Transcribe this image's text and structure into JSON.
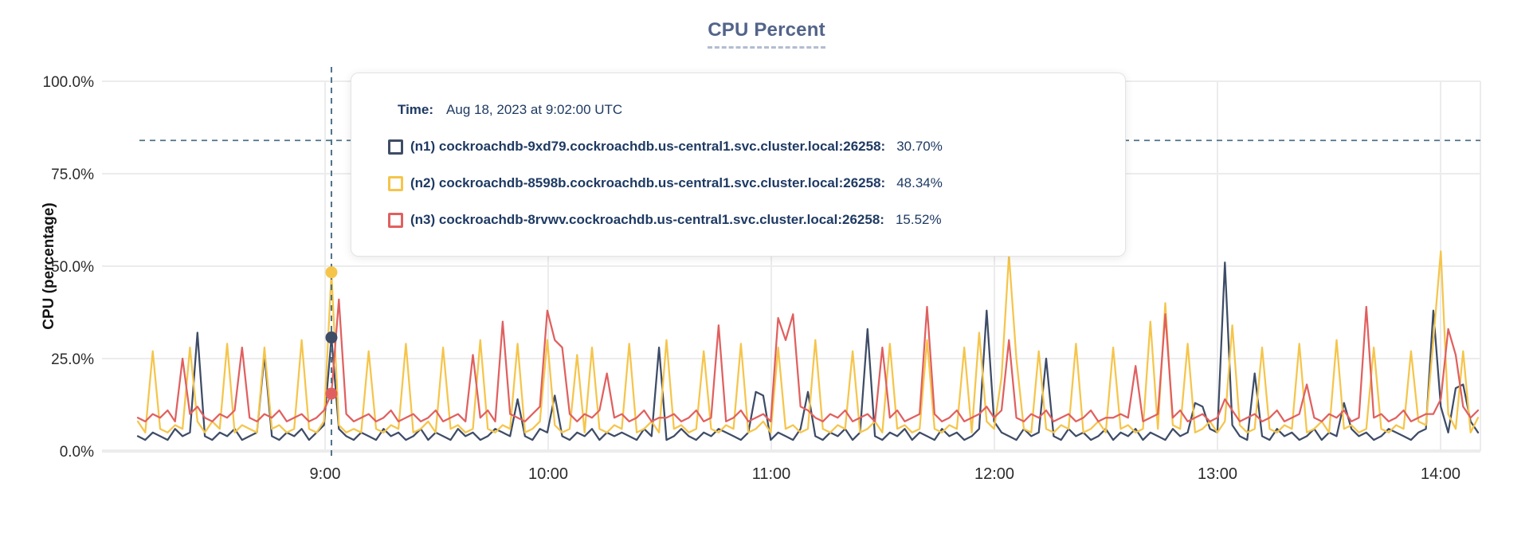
{
  "header": {
    "title": "CPU Percent"
  },
  "y_axis": {
    "label": "CPU (percentage)"
  },
  "tooltip": {
    "time_label": "Time:",
    "time_value": "Aug 18, 2023 at 9:02:00 UTC",
    "rows": [
      {
        "label": "(n1) cockroachdb-9xd79.cockroachdb.us-central1.svc.cluster.local:26258:",
        "value": "30.70%",
        "color": "#3e4c66"
      },
      {
        "label": "(n2) cockroachdb-8598b.cockroachdb.us-central1.svc.cluster.local:26258:",
        "value": "48.34%",
        "color": "#f5c54b"
      },
      {
        "label": "(n3) cockroachdb-8rvwv.cockroachdb.us-central1.svc.cluster.local:26258:",
        "value": "15.52%",
        "color": "#e0605f"
      }
    ]
  },
  "chart_data": {
    "type": "line",
    "title": "CPU Percent",
    "ylabel": "CPU (percentage)",
    "ylim": [
      0,
      100
    ],
    "grid": true,
    "x_range": [
      "8:10",
      "14:10"
    ],
    "x_step_minutes": 2,
    "x_ticks": [
      "9:00",
      "10:00",
      "11:00",
      "12:00",
      "13:00",
      "14:00"
    ],
    "y_ticks": [
      {
        "percent": 0,
        "label": "0.0%"
      },
      {
        "percent": 25,
        "label": "25.0%"
      },
      {
        "percent": 50,
        "label": "50.0%"
      },
      {
        "percent": 75,
        "label": "75.0%"
      },
      {
        "percent": 100,
        "label": "100.0%"
      }
    ],
    "threshold": {
      "percent": 84,
      "style": "dashed",
      "color": "#4e7288"
    },
    "cursor": {
      "time": "Aug 18, 2023 at 9:02:00 UTC",
      "index": 26,
      "values": [
        30.7,
        48.34,
        15.52
      ],
      "color": "#4e7288"
    },
    "series": [
      {
        "name": "(n1) cockroachdb-9xd79.cockroachdb.us-central1.svc.cluster.local:26258",
        "short": "n1",
        "color": "#3e4c66",
        "values": [
          4,
          3,
          5,
          4,
          3,
          6,
          4,
          5,
          32,
          4,
          3,
          5,
          4,
          6,
          3,
          4,
          5,
          26,
          4,
          3,
          5,
          4,
          6,
          3,
          5,
          7,
          30.7,
          6,
          4,
          3,
          5,
          4,
          3,
          6,
          4,
          5,
          3,
          4,
          6,
          3,
          5,
          4,
          3,
          6,
          4,
          5,
          3,
          4,
          6,
          5,
          4,
          14,
          4,
          3,
          6,
          5,
          15,
          4,
          3,
          5,
          4,
          6,
          3,
          5,
          4,
          5,
          4,
          3,
          6,
          4,
          28,
          3,
          4,
          6,
          4,
          3,
          5,
          4,
          6,
          5,
          4,
          3,
          5,
          16,
          15,
          3,
          5,
          4,
          3,
          6,
          16,
          4,
          3,
          5,
          4,
          6,
          3,
          5,
          33,
          4,
          3,
          5,
          4,
          6,
          3,
          5,
          4,
          3,
          6,
          4,
          5,
          3,
          4,
          6,
          38,
          8,
          5,
          4,
          3,
          6,
          4,
          5,
          25,
          4,
          3,
          6,
          4,
          5,
          3,
          4,
          6,
          3,
          5,
          4,
          6,
          3,
          5,
          4,
          3,
          6,
          4,
          5,
          13,
          12,
          6,
          5,
          51,
          7,
          4,
          3,
          21,
          4,
          3,
          6,
          4,
          5,
          3,
          4,
          6,
          3,
          5,
          4,
          13,
          6,
          4,
          5,
          3,
          4,
          6,
          5,
          4,
          3,
          5,
          6,
          38,
          12,
          5,
          17,
          18,
          8,
          5
        ]
      },
      {
        "name": "(n2) cockroachdb-8598b.cockroachdb.us-central1.svc.cluster.local:26258",
        "short": "n2",
        "color": "#f5c54b",
        "values": [
          8,
          5,
          27,
          6,
          5,
          7,
          6,
          28,
          8,
          5,
          8,
          6,
          29,
          5,
          7,
          6,
          5,
          28,
          6,
          7,
          5,
          6,
          30,
          6,
          5,
          8,
          48.34,
          7,
          5,
          6,
          5,
          27,
          6,
          5,
          7,
          6,
          29,
          5,
          6,
          8,
          5,
          28,
          6,
          7,
          5,
          6,
          30,
          6,
          5,
          7,
          6,
          29,
          5,
          6,
          8,
          30,
          7,
          5,
          6,
          26,
          5,
          28,
          6,
          5,
          7,
          6,
          29,
          5,
          6,
          8,
          5,
          30,
          6,
          7,
          5,
          6,
          27,
          6,
          5,
          7,
          6,
          29,
          5,
          6,
          8,
          5,
          28,
          6,
          7,
          5,
          6,
          30,
          6,
          5,
          7,
          6,
          27,
          5,
          6,
          8,
          5,
          29,
          6,
          7,
          5,
          6,
          30,
          6,
          5,
          7,
          6,
          28,
          5,
          32,
          8,
          6,
          20,
          53,
          25,
          6,
          5,
          27,
          6,
          5,
          7,
          6,
          29,
          5,
          6,
          8,
          5,
          28,
          6,
          7,
          5,
          6,
          35,
          6,
          40,
          7,
          6,
          29,
          5,
          6,
          8,
          5,
          8,
          34,
          7,
          5,
          6,
          28,
          6,
          5,
          7,
          6,
          29,
          5,
          6,
          8,
          5,
          30,
          6,
          7,
          5,
          6,
          28,
          6,
          5,
          7,
          6,
          27,
          8,
          7,
          30,
          54,
          10,
          6,
          27,
          5,
          9
        ]
      },
      {
        "name": "(n3) cockroachdb-8rvwv.cockroachdb.us-central1.svc.cluster.local:26258",
        "short": "n3",
        "color": "#e0605f",
        "values": [
          9,
          8,
          10,
          9,
          11,
          8,
          25,
          10,
          12,
          9,
          8,
          10,
          9,
          11,
          28,
          9,
          8,
          10,
          9,
          11,
          8,
          9,
          10,
          8,
          9,
          11,
          15.52,
          41,
          10,
          8,
          9,
          10,
          8,
          9,
          11,
          8,
          9,
          10,
          8,
          9,
          11,
          8,
          9,
          10,
          8,
          26,
          9,
          11,
          8,
          35,
          10,
          9,
          8,
          10,
          12,
          38,
          30,
          28,
          10,
          8,
          10,
          9,
          11,
          21,
          9,
          10,
          8,
          9,
          11,
          8,
          9,
          9,
          10,
          8,
          9,
          11,
          8,
          9,
          34,
          8,
          9,
          11,
          8,
          9,
          10,
          8,
          36,
          30,
          37,
          12,
          11,
          9,
          8,
          10,
          9,
          11,
          8,
          9,
          10,
          8,
          28,
          9,
          11,
          8,
          9,
          10,
          39,
          10,
          8,
          9,
          11,
          8,
          9,
          10,
          12,
          9,
          11,
          30,
          9,
          8,
          10,
          9,
          11,
          8,
          9,
          10,
          8,
          9,
          11,
          8,
          9,
          9,
          10,
          9,
          23,
          8,
          9,
          10,
          37,
          9,
          11,
          8,
          9,
          10,
          8,
          9,
          14,
          11,
          8,
          9,
          10,
          8,
          9,
          11,
          8,
          9,
          10,
          18,
          9,
          8,
          10,
          9,
          11,
          8,
          9,
          39,
          9,
          10,
          8,
          9,
          11,
          8,
          9,
          10,
          10,
          14,
          33,
          26,
          12,
          9,
          11
        ]
      }
    ]
  }
}
